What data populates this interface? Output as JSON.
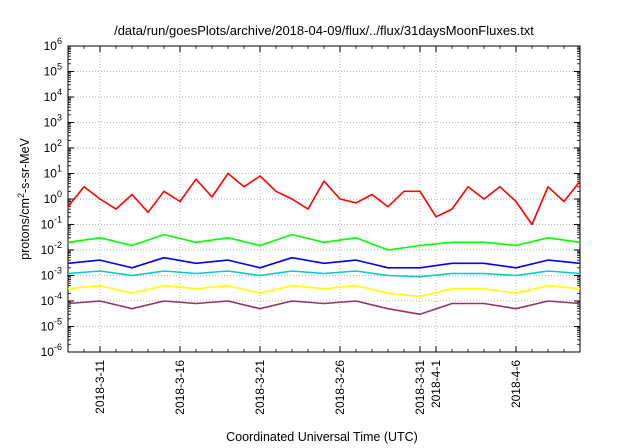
{
  "chart_data": {
    "type": "line",
    "title": "/data/run/goesPlots/archive/2018-04-09/flux/../flux/31daysMoonFluxes.txt",
    "xlabel": "Coordinated Universal Time (UTC)",
    "ylabel": {
      "prefix": "protons/cm",
      "sup": "2",
      "suffix": "-s-sr-MeV"
    },
    "yscale": "log",
    "ylim": [
      1e-06,
      1000000.0
    ],
    "y_ticks": [
      {
        "base": "10",
        "exp": "-6",
        "value": 1e-06
      },
      {
        "base": "10",
        "exp": "-5",
        "value": 1e-05
      },
      {
        "base": "10",
        "exp": "-4",
        "value": 0.0001
      },
      {
        "base": "10",
        "exp": "-3",
        "value": 0.001
      },
      {
        "base": "10",
        "exp": "-2",
        "value": 0.01
      },
      {
        "base": "10",
        "exp": "-1",
        "value": 0.1
      },
      {
        "base": "10",
        "exp": "0",
        "value": 1
      },
      {
        "base": "10",
        "exp": "1",
        "value": 10
      },
      {
        "base": "10",
        "exp": "2",
        "value": 100
      },
      {
        "base": "10",
        "exp": "3",
        "value": 1000
      },
      {
        "base": "10",
        "exp": "4",
        "value": 10000
      },
      {
        "base": "10",
        "exp": "5",
        "value": 100000
      },
      {
        "base": "10",
        "exp": "6",
        "value": 1000000
      }
    ],
    "xlim": [
      "2018-03-09",
      "2018-04-10"
    ],
    "x_ticks": [
      "2018-3-11",
      "2018-3-16",
      "2018-3-21",
      "2018-3-26",
      "2018-3-31",
      "2018-4-1",
      "2018-4-6"
    ],
    "grid": true,
    "legend": "none",
    "series_colors": [
      "#ff0000",
      "#00ff00",
      "#0000ff",
      "#00cccc",
      "#ffff00",
      "#993366"
    ],
    "series": [
      {
        "color": "#ff0000",
        "x": [
          "2018-03-09",
          "2018-03-10",
          "2018-03-11",
          "2018-03-12",
          "2018-03-13",
          "2018-03-14",
          "2018-03-15",
          "2018-03-16",
          "2018-03-17",
          "2018-03-18",
          "2018-03-19",
          "2018-03-20",
          "2018-03-21",
          "2018-03-22",
          "2018-03-23",
          "2018-03-24",
          "2018-03-25",
          "2018-03-26",
          "2018-03-27",
          "2018-03-28",
          "2018-03-29",
          "2018-03-30",
          "2018-03-31",
          "2018-04-01",
          "2018-04-02",
          "2018-04-03",
          "2018-04-04",
          "2018-04-05",
          "2018-04-06",
          "2018-04-07",
          "2018-04-08",
          "2018-04-09",
          "2018-04-10"
        ],
        "y": [
          0.5,
          3,
          1,
          0.4,
          1.5,
          0.3,
          2,
          0.8,
          6,
          1.2,
          10,
          3,
          8,
          2,
          1,
          0.4,
          5,
          1,
          0.7,
          1.5,
          0.5,
          2,
          2,
          0.2,
          0.4,
          3,
          1,
          3,
          0.8,
          0.1,
          3,
          0.8,
          5
        ]
      },
      {
        "color": "#00ff00",
        "x": [
          "2018-03-09",
          "2018-03-11",
          "2018-03-13",
          "2018-03-15",
          "2018-03-17",
          "2018-03-19",
          "2018-03-21",
          "2018-03-23",
          "2018-03-25",
          "2018-03-27",
          "2018-03-29",
          "2018-03-31",
          "2018-04-02",
          "2018-04-04",
          "2018-04-06",
          "2018-04-08",
          "2018-04-10"
        ],
        "y": [
          0.02,
          0.03,
          0.015,
          0.04,
          0.02,
          0.03,
          0.015,
          0.04,
          0.02,
          0.03,
          0.01,
          0.015,
          0.02,
          0.02,
          0.015,
          0.03,
          0.02
        ]
      },
      {
        "color": "#0000ff",
        "x": [
          "2018-03-09",
          "2018-03-11",
          "2018-03-13",
          "2018-03-15",
          "2018-03-17",
          "2018-03-19",
          "2018-03-21",
          "2018-03-23",
          "2018-03-25",
          "2018-03-27",
          "2018-03-29",
          "2018-03-31",
          "2018-04-02",
          "2018-04-04",
          "2018-04-06",
          "2018-04-08",
          "2018-04-10"
        ],
        "y": [
          0.003,
          0.004,
          0.002,
          0.005,
          0.003,
          0.004,
          0.002,
          0.005,
          0.003,
          0.004,
          0.002,
          0.002,
          0.003,
          0.003,
          0.002,
          0.004,
          0.003
        ]
      },
      {
        "color": "#00cccc",
        "x": [
          "2018-03-09",
          "2018-03-11",
          "2018-03-13",
          "2018-03-15",
          "2018-03-17",
          "2018-03-19",
          "2018-03-21",
          "2018-03-23",
          "2018-03-25",
          "2018-03-27",
          "2018-03-29",
          "2018-03-31",
          "2018-04-02",
          "2018-04-04",
          "2018-04-06",
          "2018-04-08",
          "2018-04-10"
        ],
        "y": [
          0.0012,
          0.0015,
          0.001,
          0.0015,
          0.0012,
          0.0015,
          0.001,
          0.0015,
          0.0012,
          0.0015,
          0.001,
          0.0009,
          0.0012,
          0.0012,
          0.001,
          0.0015,
          0.0012
        ]
      },
      {
        "color": "#ffff00",
        "x": [
          "2018-03-09",
          "2018-03-11",
          "2018-03-13",
          "2018-03-15",
          "2018-03-17",
          "2018-03-19",
          "2018-03-21",
          "2018-03-23",
          "2018-03-25",
          "2018-03-27",
          "2018-03-29",
          "2018-03-31",
          "2018-04-02",
          "2018-04-04",
          "2018-04-06",
          "2018-04-08",
          "2018-04-10"
        ],
        "y": [
          0.0003,
          0.0004,
          0.0002,
          0.0004,
          0.0003,
          0.0004,
          0.0002,
          0.0004,
          0.0003,
          0.0004,
          0.0002,
          0.00015,
          0.0003,
          0.0003,
          0.0002,
          0.0004,
          0.0003
        ]
      },
      {
        "color": "#993366",
        "x": [
          "2018-03-09",
          "2018-03-11",
          "2018-03-13",
          "2018-03-15",
          "2018-03-17",
          "2018-03-19",
          "2018-03-21",
          "2018-03-23",
          "2018-03-25",
          "2018-03-27",
          "2018-03-29",
          "2018-03-31",
          "2018-04-02",
          "2018-04-04",
          "2018-04-06",
          "2018-04-08",
          "2018-04-10"
        ],
        "y": [
          8e-05,
          0.0001,
          5e-05,
          0.0001,
          8e-05,
          0.0001,
          5e-05,
          0.0001,
          8e-05,
          0.0001,
          5e-05,
          3e-05,
          8e-05,
          8e-05,
          5e-05,
          0.0001,
          8e-05
        ]
      }
    ]
  }
}
